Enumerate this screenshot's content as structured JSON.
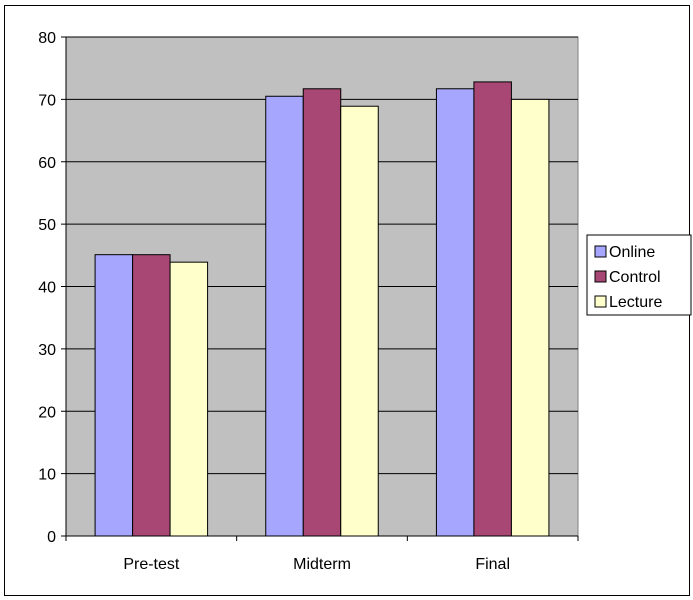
{
  "chart_data": {
    "type": "bar",
    "title": "",
    "xlabel": "",
    "ylabel": "",
    "categories": [
      "Pre-test",
      "Midterm",
      "Final"
    ],
    "series": [
      {
        "name": "Online",
        "values": [
          45.1,
          70.5,
          71.7
        ],
        "color": "#A6A6FF"
      },
      {
        "name": "Control",
        "values": [
          45.1,
          71.7,
          72.8
        ],
        "color": "#A84774"
      },
      {
        "name": "Lecture",
        "values": [
          43.9,
          68.9,
          70.0
        ],
        "color": "#FFFFCC"
      }
    ],
    "ylim": [
      0,
      80
    ],
    "yticks": [
      "0",
      "10",
      "20",
      "30",
      "40",
      "50",
      "60",
      "70",
      "80"
    ],
    "grid": true,
    "plot_background": "#C0C0C0",
    "legend_position": "right"
  }
}
